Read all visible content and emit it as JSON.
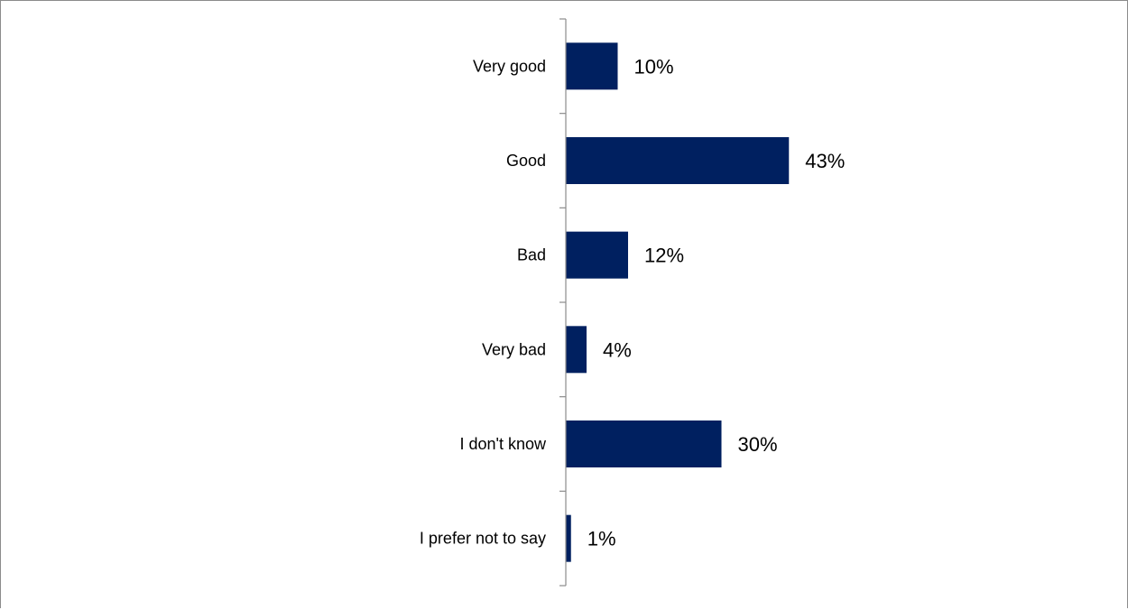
{
  "chart_data": {
    "type": "bar",
    "orientation": "horizontal",
    "title": "",
    "xlabel": "",
    "ylabel": "",
    "categories": [
      "Very good",
      "Good",
      "Bad",
      "Very bad",
      "I don't know",
      "I prefer not to say"
    ],
    "values": [
      10,
      43,
      12,
      4,
      30,
      1
    ],
    "value_labels": [
      "10%",
      "43%",
      "12%",
      "4%",
      "30%",
      "1%"
    ],
    "unit": "%",
    "xlim": [
      0,
      100
    ],
    "grid": false,
    "legend": "none",
    "bar_color": "#002060",
    "axis_color": "#8c8c8c"
  }
}
